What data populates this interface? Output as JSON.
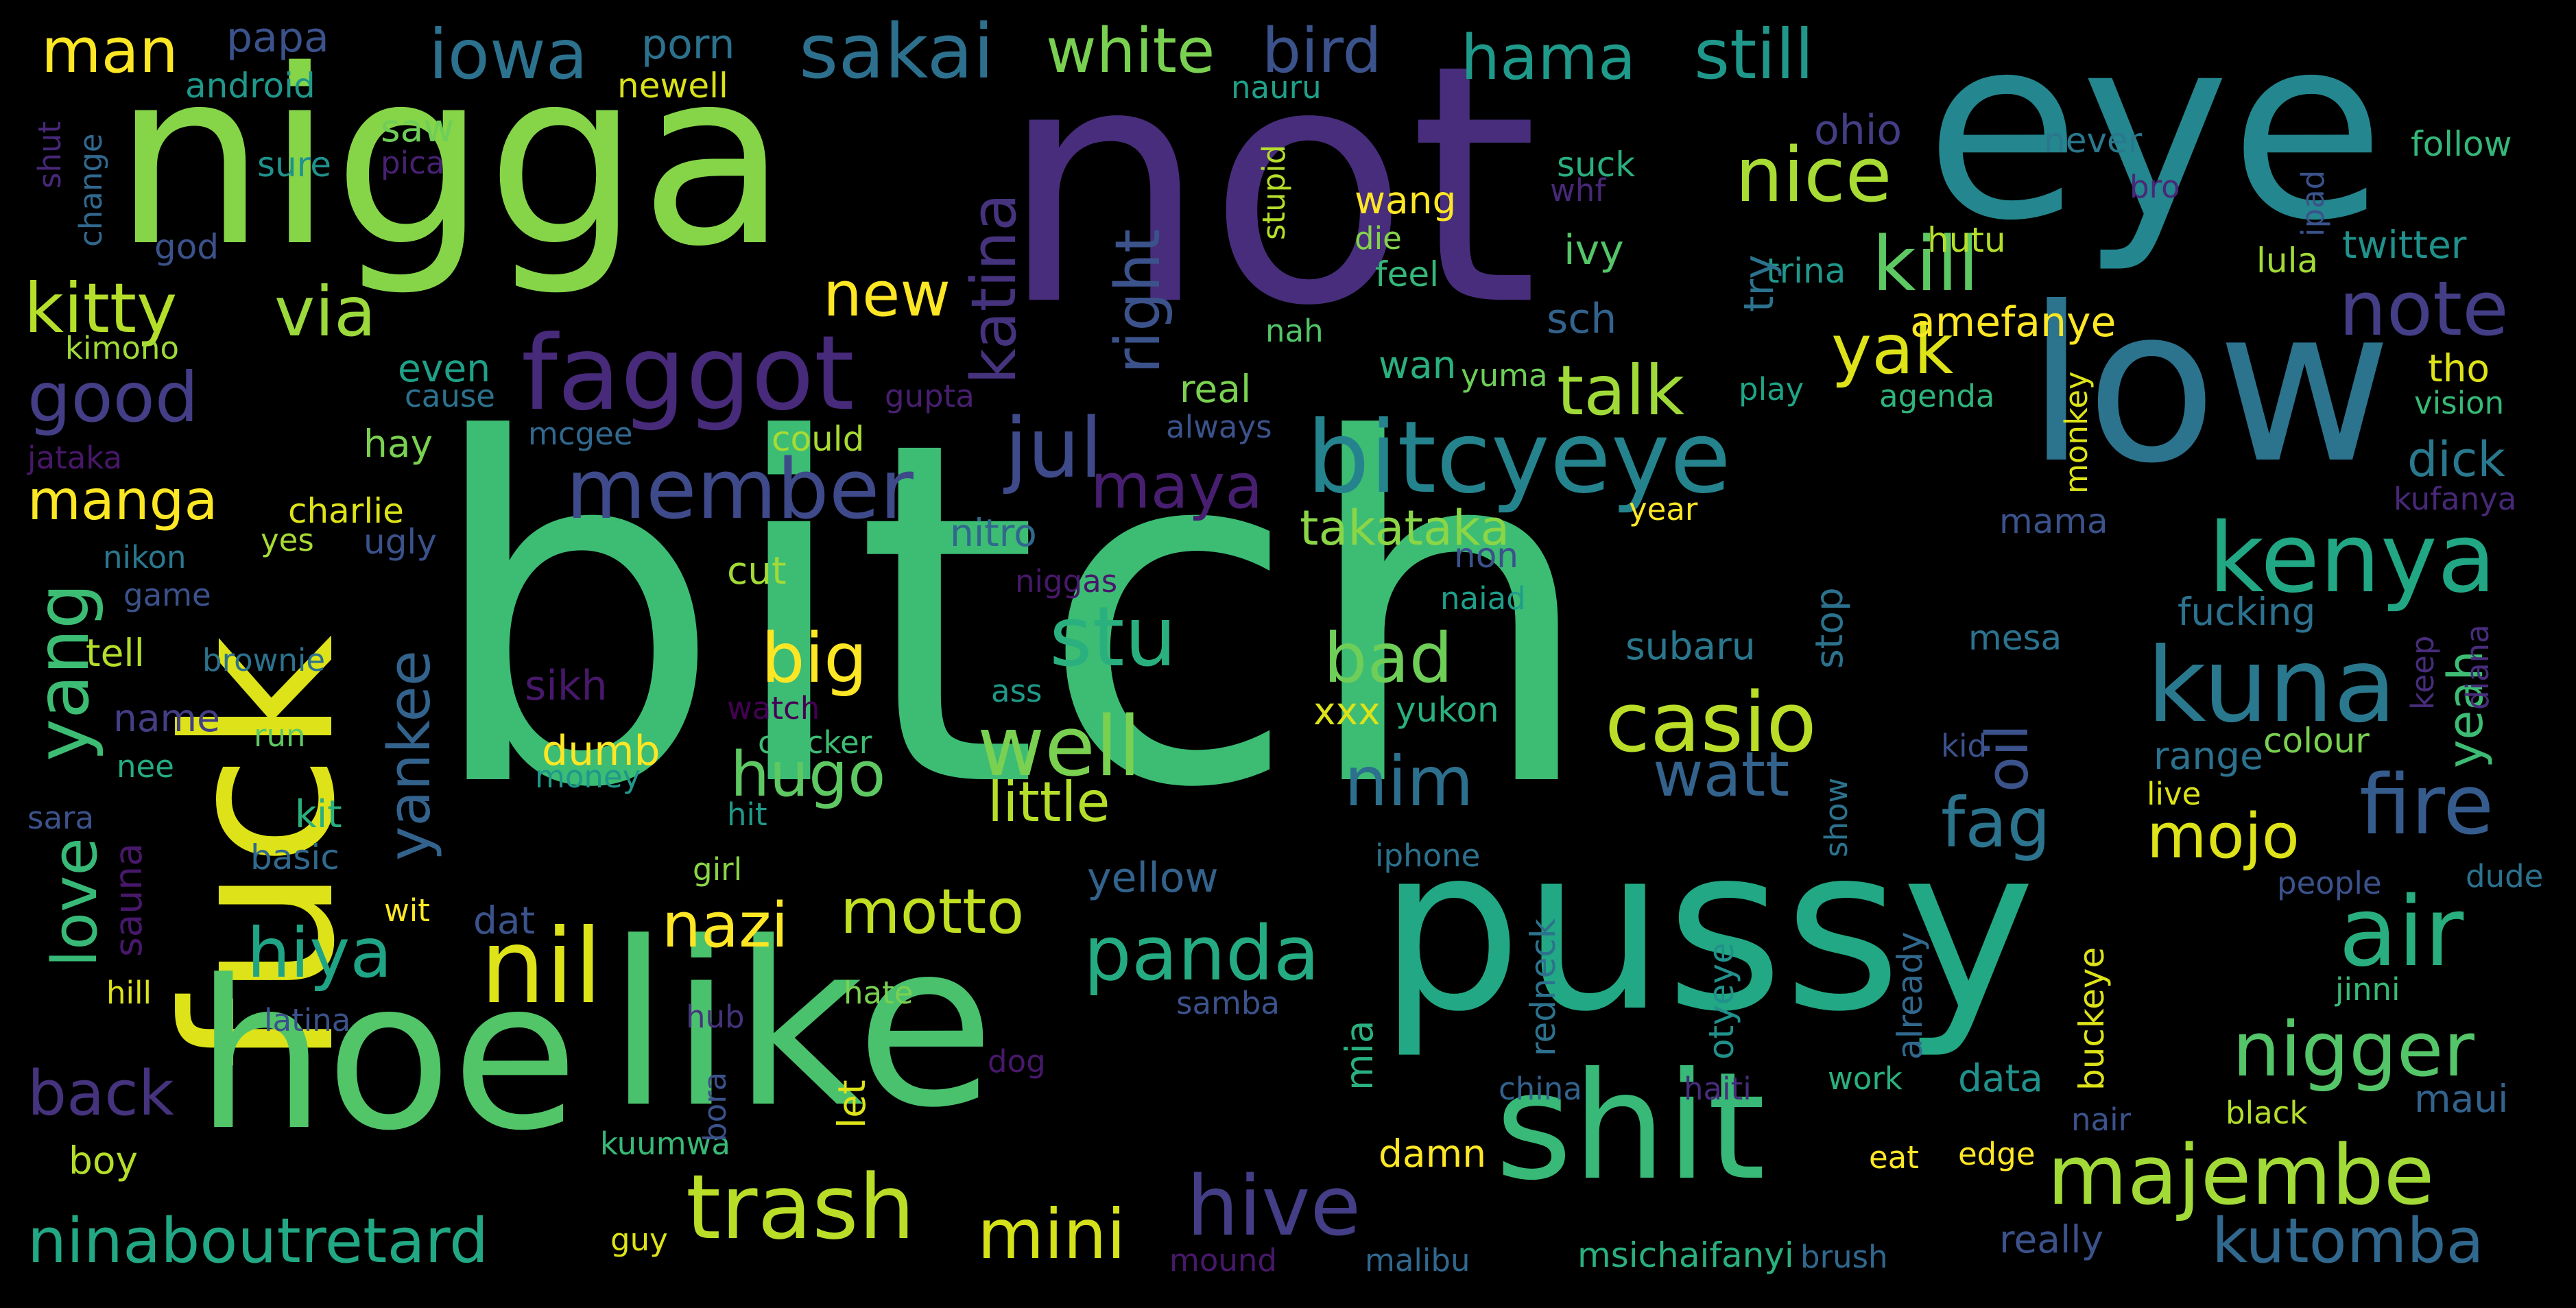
{
  "words": [
    {
      "text": "bitch",
      "color": "#3dbc74"
    },
    {
      "text": "not",
      "color": "#472d7b"
    },
    {
      "text": "eye",
      "color": "#24868e"
    },
    {
      "text": "nigga",
      "color": "#86d549"
    },
    {
      "text": "fuck",
      "color": "#dde318"
    },
    {
      "text": "low",
      "color": "#2c738e"
    },
    {
      "text": "pussy",
      "color": "#22a884"
    },
    {
      "text": "hoe",
      "color": "#52c569"
    },
    {
      "text": "like",
      "color": "#4ac16d"
    },
    {
      "text": "shit",
      "color": "#38b977"
    },
    {
      "text": "faggot",
      "color": "#472a7a"
    },
    {
      "text": "bitcyeye",
      "color": "#25838e"
    },
    {
      "text": "member",
      "color": "#3e4a89"
    },
    {
      "text": "kenya",
      "color": "#22a785"
    },
    {
      "text": "kuna",
      "color": "#2a788e"
    },
    {
      "text": "casio",
      "color": "#bade28"
    },
    {
      "text": "nil",
      "color": "#dde318"
    },
    {
      "text": "trash",
      "color": "#bade28"
    },
    {
      "text": "majembe",
      "color": "#a2da37"
    },
    {
      "text": "ninaboutretard",
      "color": "#22a884"
    },
    {
      "text": "iowa",
      "color": "#2c728e"
    },
    {
      "text": "sakai",
      "color": "#2d708e"
    },
    {
      "text": "white",
      "color": "#7ad151"
    },
    {
      "text": "bird",
      "color": "#3b528b"
    },
    {
      "text": "hama",
      "color": "#1f9a8a"
    },
    {
      "text": "still",
      "color": "#1f988b"
    },
    {
      "text": "man",
      "color": "#fde725"
    },
    {
      "text": "kitty",
      "color": "#b5de2b"
    },
    {
      "text": "via",
      "color": "#9bd93c"
    },
    {
      "text": "good",
      "color": "#433e85"
    },
    {
      "text": "nice",
      "color": "#a8db34"
    },
    {
      "text": "kill",
      "color": "#5ec962"
    },
    {
      "text": "note",
      "color": "#433e85"
    },
    {
      "text": "yak",
      "color": "#dde318"
    },
    {
      "text": "talk",
      "color": "#a0da39"
    },
    {
      "text": "jul",
      "color": "#3e4a89"
    },
    {
      "text": "maya",
      "color": "#481f70"
    },
    {
      "text": "stu",
      "color": "#2ab07f"
    },
    {
      "text": "big",
      "color": "#fde725"
    },
    {
      "text": "bad",
      "color": "#6ece58"
    },
    {
      "text": "well",
      "color": "#7ad151"
    },
    {
      "text": "hugo",
      "color": "#5ec962"
    },
    {
      "text": "nim",
      "color": "#2d708e"
    },
    {
      "text": "watt",
      "color": "#33638d"
    },
    {
      "text": "fire",
      "color": "#365c8d"
    },
    {
      "text": "fag",
      "color": "#2c738e"
    },
    {
      "text": "mojo",
      "color": "#dde318"
    },
    {
      "text": "air",
      "color": "#29af7f"
    },
    {
      "text": "nigger",
      "color": "#54c568"
    },
    {
      "text": "panda",
      "color": "#25ab82"
    },
    {
      "text": "motto",
      "color": "#c2df23"
    },
    {
      "text": "nazi",
      "color": "#fde725"
    },
    {
      "text": "hiya",
      "color": "#20a486"
    },
    {
      "text": "back",
      "color": "#46337e"
    },
    {
      "text": "mini",
      "color": "#d5e21a"
    },
    {
      "text": "hive",
      "color": "#433e85"
    },
    {
      "text": "kutomba",
      "color": "#31688e"
    },
    {
      "text": "manga",
      "color": "#fde725"
    },
    {
      "text": "new",
      "color": "#fde725"
    },
    {
      "text": "takatakа",
      "color": "#8bd646"
    },
    {
      "text": "little",
      "color": "#b5de2b"
    },
    {
      "text": "papa",
      "color": "#3b528b"
    },
    {
      "text": "android",
      "color": "#1f988b"
    },
    {
      "text": "porn",
      "color": "#2c728e"
    },
    {
      "text": "newell",
      "color": "#d8e219"
    },
    {
      "text": "nauru",
      "color": "#1fa088"
    },
    {
      "text": "saw",
      "color": "#6ece58"
    },
    {
      "text": "sure",
      "color": "#21918c"
    },
    {
      "text": "pica",
      "color": "#482173"
    },
    {
      "text": "god",
      "color": "#3b528b"
    },
    {
      "text": "kimono",
      "color": "#a0da39"
    },
    {
      "text": "even",
      "color": "#1fa088"
    },
    {
      "text": "cause",
      "color": "#2c728e"
    },
    {
      "text": "hay",
      "color": "#7ad151"
    },
    {
      "text": "mcgee",
      "color": "#31688e"
    },
    {
      "text": "could",
      "color": "#a8db34"
    },
    {
      "text": "gupta",
      "color": "#481f70"
    },
    {
      "text": "always",
      "color": "#3b528b"
    },
    {
      "text": "real",
      "color": "#7ad151"
    },
    {
      "text": "wang",
      "color": "#fde725"
    },
    {
      "text": "die",
      "color": "#84d44b"
    },
    {
      "text": "feel",
      "color": "#35b779"
    },
    {
      "text": "ivy",
      "color": "#54c568"
    },
    {
      "text": "suck",
      "color": "#2ab07f"
    },
    {
      "text": "whf",
      "color": "#482878"
    },
    {
      "text": "sch",
      "color": "#33638d"
    },
    {
      "text": "wan",
      "color": "#2ab07f"
    },
    {
      "text": "yuma",
      "color": "#6ece58"
    },
    {
      "text": "nah",
      "color": "#52c569"
    },
    {
      "text": "never",
      "color": "#2a788e"
    },
    {
      "text": "bro",
      "color": "#482878"
    },
    {
      "text": "follow",
      "color": "#35b779"
    },
    {
      "text": "hutu",
      "color": "#b5de2b"
    },
    {
      "text": "lula",
      "color": "#a2da37"
    },
    {
      "text": "twitter",
      "color": "#21918c"
    },
    {
      "text": "trina",
      "color": "#1f988b"
    },
    {
      "text": "amefanye",
      "color": "#fde725"
    },
    {
      "text": "play",
      "color": "#20a486"
    },
    {
      "text": "agenda",
      "color": "#2fb47c"
    },
    {
      "text": "tho",
      "color": "#dde318"
    },
    {
      "text": "vision",
      "color": "#38b977"
    },
    {
      "text": "dick",
      "color": "#2a788e"
    },
    {
      "text": "kufanya",
      "color": "#482878"
    },
    {
      "text": "mama",
      "color": "#3b528b"
    },
    {
      "text": "year",
      "color": "#fde725"
    },
    {
      "text": "non",
      "color": "#3b528b"
    },
    {
      "text": "naiad",
      "color": "#1f9e89"
    },
    {
      "text": "nitro",
      "color": "#31688e"
    },
    {
      "text": "cut",
      "color": "#a2da37"
    },
    {
      "text": "niggas",
      "color": "#48186a"
    },
    {
      "text": "charlie",
      "color": "#dde318"
    },
    {
      "text": "yes",
      "color": "#a8db34"
    },
    {
      "text": "ugly",
      "color": "#3b528b"
    },
    {
      "text": "nikon",
      "color": "#2a788e"
    },
    {
      "text": "game",
      "color": "#3b528b"
    },
    {
      "text": "tell",
      "color": "#b5de2b"
    },
    {
      "text": "brownie",
      "color": "#2c728e"
    },
    {
      "text": "name",
      "color": "#433e85"
    },
    {
      "text": "run",
      "color": "#5ec962"
    },
    {
      "text": "nee",
      "color": "#25ab82"
    },
    {
      "text": "sara",
      "color": "#3b528b"
    },
    {
      "text": "kit",
      "color": "#2ab07f"
    },
    {
      "text": "basic",
      "color": "#31688e"
    },
    {
      "text": "sikh",
      "color": "#48186a"
    },
    {
      "text": "dumb",
      "color": "#fde725"
    },
    {
      "text": "money",
      "color": "#1f988b"
    },
    {
      "text": "xxx",
      "color": "#dde318"
    },
    {
      "text": "yukon",
      "color": "#2ab07f"
    },
    {
      "text": "watch",
      "color": "#440154"
    },
    {
      "text": "cracker",
      "color": "#3dbc74"
    },
    {
      "text": "ass",
      "color": "#1f9a8a"
    },
    {
      "text": "hit",
      "color": "#1f9a8a"
    },
    {
      "text": "subaru",
      "color": "#2a788e"
    },
    {
      "text": "mesa",
      "color": "#2c728e"
    },
    {
      "text": "fucking",
      "color": "#2c728e"
    },
    {
      "text": "range",
      "color": "#2c728e"
    },
    {
      "text": "live",
      "color": "#dde318"
    },
    {
      "text": "kid",
      "color": "#3b528b"
    },
    {
      "text": "colour",
      "color": "#7ad151"
    },
    {
      "text": "dude",
      "color": "#2c728e"
    },
    {
      "text": "people",
      "color": "#3b528b"
    },
    {
      "text": "girl",
      "color": "#8bd646"
    },
    {
      "text": "iphone",
      "color": "#2c728e"
    },
    {
      "text": "yellow",
      "color": "#33638d"
    },
    {
      "text": "wit",
      "color": "#fde725"
    },
    {
      "text": "dat",
      "color": "#3b528b"
    },
    {
      "text": "hill",
      "color": "#dde318"
    },
    {
      "text": "latina",
      "color": "#3b528b"
    },
    {
      "text": "hate",
      "color": "#7ad151"
    },
    {
      "text": "samba",
      "color": "#3b528b"
    },
    {
      "text": "hub",
      "color": "#46337e"
    },
    {
      "text": "dog",
      "color": "#48186a"
    },
    {
      "text": "china",
      "color": "#33638d"
    },
    {
      "text": "haiti",
      "color": "#472d7b"
    },
    {
      "text": "work",
      "color": "#2ab07f"
    },
    {
      "text": "data",
      "color": "#21918c"
    },
    {
      "text": "nair",
      "color": "#3b528b"
    },
    {
      "text": "black",
      "color": "#b5de2b"
    },
    {
      "text": "maui",
      "color": "#33638d"
    },
    {
      "text": "boy",
      "color": "#b5de2b"
    },
    {
      "text": "kuumwa",
      "color": "#38b977"
    },
    {
      "text": "damn",
      "color": "#fde725"
    },
    {
      "text": "eat",
      "color": "#fde725"
    },
    {
      "text": "edge",
      "color": "#fde725"
    },
    {
      "text": "guy",
      "color": "#dde318"
    },
    {
      "text": "mound",
      "color": "#48186a"
    },
    {
      "text": "malibu",
      "color": "#31688e"
    },
    {
      "text": "msichaifanyi",
      "color": "#2ab07f"
    },
    {
      "text": "brush",
      "color": "#31688e"
    },
    {
      "text": "really",
      "color": "#3b528b"
    },
    {
      "text": "shut",
      "color": "#482878"
    },
    {
      "text": "change",
      "color": "#31688e"
    },
    {
      "text": "jataka",
      "color": "#48186a"
    },
    {
      "text": "katina",
      "color": "#46337e"
    },
    {
      "text": "right",
      "color": "#3b528b"
    },
    {
      "text": "yankee",
      "color": "#33638d"
    },
    {
      "text": "yang",
      "color": "#3dbc74"
    },
    {
      "text": "love",
      "color": "#38b977"
    },
    {
      "text": "sauna",
      "color": "#48186a"
    },
    {
      "text": "bora",
      "color": "#3b528b"
    },
    {
      "text": "let",
      "color": "#dde318"
    },
    {
      "text": "mia",
      "color": "#2ab07f"
    },
    {
      "text": "redneck",
      "color": "#2c728e"
    },
    {
      "text": "otyeye",
      "color": "#21918c"
    },
    {
      "text": "already",
      "color": "#31688e"
    },
    {
      "text": "buckeye",
      "color": "#dde318"
    },
    {
      "text": "show",
      "color": "#2c728e"
    },
    {
      "text": "stop",
      "color": "#2c728e"
    },
    {
      "text": "try",
      "color": "#2c728e"
    },
    {
      "text": "monkey",
      "color": "#dde318"
    },
    {
      "text": "oil",
      "color": "#3b528b"
    },
    {
      "text": "yeah",
      "color": "#3dbc74"
    },
    {
      "text": "keep",
      "color": "#472d7b"
    },
    {
      "text": "diana",
      "color": "#472d7b"
    },
    {
      "text": "ipad",
      "color": "#3b528b"
    },
    {
      "text": "stupid",
      "color": "#b5de2b"
    },
    {
      "text": "ohio",
      "color": "#433e85"
    },
    {
      "text": "jinni",
      "color": "#38b977"
    }
  ]
}
